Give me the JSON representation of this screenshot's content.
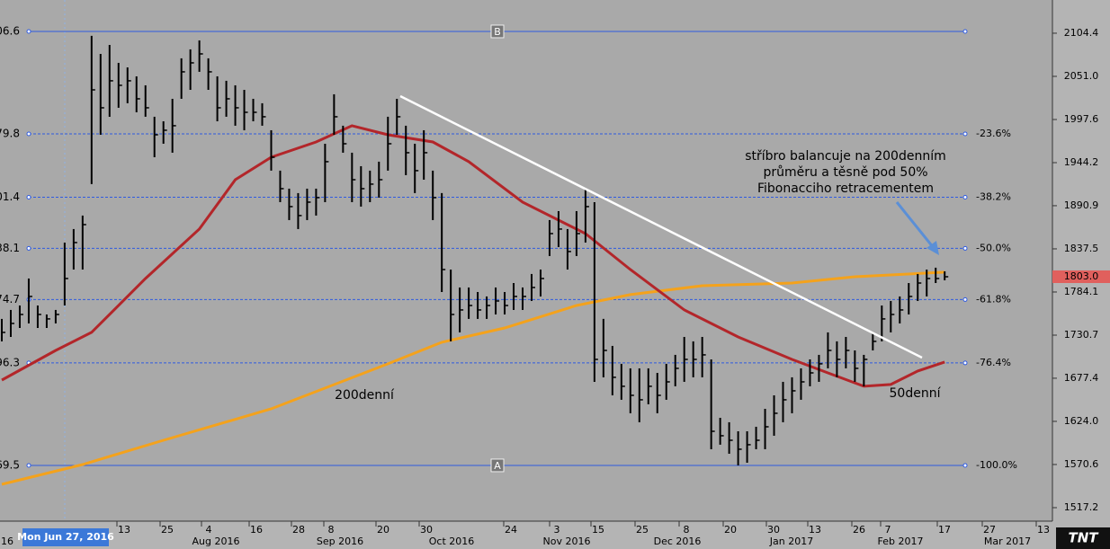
{
  "chart_data": {
    "type": "ohlc",
    "xlim": [
      -0.2,
      117
    ],
    "ylim": [
      1500.5,
      2145.5
    ],
    "yticks": [
      2104.4,
      {
        "value": 2051,
        "label": "2051.0"
      },
      1997.6,
      1944.2,
      1890.9,
      1837.5,
      1784.1,
      1730.7,
      1677.4,
      {
        "value": 1624,
        "label": "1624.0"
      },
      1570.6,
      1517.2
    ],
    "x_day_labels": [
      "13",
      "25",
      "4",
      "16",
      "28",
      "8",
      "20",
      "30",
      "24",
      "3",
      "15",
      "25",
      "8",
      "20",
      "30",
      "13",
      "26",
      "7",
      "17",
      "27",
      "13"
    ],
    "x_month_labels": [
      "16",
      "Aug 2016",
      "Sep 2016",
      "Oct 2016",
      "Nov 2016",
      "Dec 2016",
      "Jan 2017",
      "Feb 2017",
      "Mar 2017"
    ],
    "cursor_label": "Mon Jun 27, 2016",
    "color": "#000000",
    "high": [
      1750.8,
      1761.9,
      1767.4,
      1800.8,
      1767.4,
      1756.3,
      1761.9,
      1845.3,
      1862.0,
      1878.7,
      2101.1,
      2078.8,
      2089.9,
      2067.7,
      2062.1,
      2051.0,
      2039.9,
      2001.0,
      1995.4,
      2023.2,
      2073.3,
      2084.4,
      2095.5,
      2073.3,
      2051.0,
      2045.5,
      2039.9,
      2034.3,
      2023.2,
      2017.7,
      1984.3,
      1934.3,
      1912.0,
      1906.5,
      1912.0,
      1912.0,
      1967.6,
      2028.8,
      1989.9,
      1956.5,
      1939.8,
      1934.3,
      1945.4,
      2001.0,
      2023.2,
      1989.9,
      1967.6,
      1984.3,
      1934.3,
      1906.5,
      1811.9,
      1789.7,
      1789.7,
      1784.1,
      1778.6,
      1789.7,
      1784.1,
      1795.2,
      1789.7,
      1806.4,
      1811.9,
      1873.1,
      1884.2,
      1862.0,
      1884.2,
      1912.0,
      1895.3,
      1750.8,
      1717.4,
      1695.2,
      1689.6,
      1689.6,
      1689.6,
      1684.0,
      1695.2,
      1706.3,
      1728.5,
      1723.0,
      1728.5,
      1700.7,
      1628.4,
      1622.9,
      1611.7,
      1611.7,
      1617.3,
      1639.5,
      1656.2,
      1672.9,
      1678.5,
      1689.6,
      1700.7,
      1706.3,
      1734.1,
      1723.0,
      1728.5,
      1711.8,
      1706.3,
      1734.1,
      1767.4,
      1773.0,
      1778.6,
      1795.2,
      1806.4,
      1811.9,
      1814.2,
      1809.7
    ],
    "low": [
      1723.0,
      1728.5,
      1739.6,
      1745.2,
      1739.6,
      1739.6,
      1745.2,
      1767.4,
      1811.9,
      1811.9,
      1917.6,
      1978.7,
      2001.0,
      2012.1,
      2017.7,
      2006.5,
      2001.0,
      1950.9,
      1967.6,
      1956.5,
      2023.2,
      2034.3,
      2056.6,
      2034.3,
      1995.4,
      2001.0,
      1989.9,
      1984.3,
      1995.4,
      1989.9,
      1934.3,
      1895.3,
      1873.1,
      1862.0,
      1873.1,
      1878.7,
      1895.3,
      1978.7,
      1956.5,
      1895.3,
      1889.8,
      1895.3,
      1900.9,
      1934.3,
      1978.7,
      1928.7,
      1906.5,
      1923.1,
      1873.1,
      1784.1,
      1723.0,
      1734.1,
      1750.8,
      1750.8,
      1750.8,
      1756.3,
      1756.3,
      1761.9,
      1761.9,
      1773.0,
      1778.6,
      1828.6,
      1839.7,
      1811.9,
      1828.6,
      1845.3,
      1672.9,
      1678.5,
      1656.2,
      1650.7,
      1634.0,
      1622.9,
      1645.1,
      1634.0,
      1650.7,
      1667.4,
      1672.9,
      1678.5,
      1678.5,
      1589.5,
      1595.1,
      1583.9,
      1569.5,
      1572.8,
      1589.5,
      1589.5,
      1606.2,
      1622.9,
      1634.0,
      1650.7,
      1667.4,
      1672.9,
      1689.6,
      1678.5,
      1689.6,
      1672.9,
      1667.4,
      1711.8,
      1723.0,
      1734.1,
      1745.2,
      1756.3,
      1773.0,
      1778.6,
      1795.2,
      1798.6
    ],
    "close": [
      1734.1,
      1745.2,
      1756.3,
      1778.6,
      1756.3,
      1750.8,
      1756.3,
      1800.8,
      1845.3,
      1867.5,
      2034.3,
      2012.1,
      2045.5,
      2039.9,
      2045.5,
      2023.2,
      2012.1,
      1978.7,
      1984.3,
      1989.9,
      2056.6,
      2067.7,
      2078.8,
      2056.6,
      2012.1,
      2023.2,
      2012.1,
      2006.5,
      2006.5,
      2001.0,
      1950.9,
      1912.0,
      1889.8,
      1878.7,
      1895.3,
      1900.9,
      1945.4,
      2001.0,
      1967.6,
      1923.1,
      1912.0,
      1917.6,
      1923.1,
      1967.6,
      2001.0,
      1956.5,
      1934.3,
      1956.5,
      1900.9,
      1811.9,
      1756.3,
      1761.9,
      1767.4,
      1761.9,
      1767.4,
      1773.0,
      1767.4,
      1778.6,
      1778.6,
      1789.7,
      1800.8,
      1856.4,
      1862.0,
      1834.2,
      1856.4,
      1889.8,
      1700.7,
      1711.8,
      1678.5,
      1667.4,
      1656.2,
      1650.7,
      1667.4,
      1656.2,
      1672.9,
      1689.6,
      1700.7,
      1700.7,
      1706.3,
      1611.7,
      1606.2,
      1600.6,
      1589.5,
      1595.1,
      1600.6,
      1617.3,
      1634.0,
      1650.7,
      1661.8,
      1672.9,
      1684.0,
      1695.2,
      1711.8,
      1700.7,
      1711.8,
      1689.6,
      1700.7,
      1723.0,
      1750.8,
      1756.3,
      1761.9,
      1778.6,
      1795.2,
      1800.8,
      1800.8,
      1803.0
    ],
    "lines": [
      {
        "color": "#f4a21c",
        "x": [
          0,
          9,
          18,
          30,
          43,
          49,
          56,
          64,
          70,
          78,
          88,
          95,
          105
        ],
        "values": [
          1546.1,
          1570.6,
          1600.6,
          1639.5,
          1695.2,
          1721.9,
          1739.6,
          1767.4,
          1780.8,
          1791.9,
          1795.2,
          1803.0,
          1808.6
        ]
      },
      {
        "color": "#b3262a",
        "x": [
          0,
          6,
          10,
          16,
          22,
          26,
          30,
          35,
          39,
          43,
          48,
          52,
          58,
          65,
          70,
          76,
          82,
          88,
          92,
          96,
          99,
          102,
          105
        ],
        "values": [
          1675.1,
          1711.8,
          1734.1,
          1800.8,
          1862.0,
          1923.1,
          1950.9,
          1969.8,
          1989.9,
          1978.7,
          1969.8,
          1945.4,
          1895.3,
          1856.4,
          1811.9,
          1761.9,
          1728.5,
          1700.7,
          1684.0,
          1667.4,
          1669.6,
          1686.3,
          1697.4
        ]
      }
    ],
    "fib_levels": [
      {
        "value": 2106.6,
        "left_label": "06.6",
        "marker": "B"
      },
      {
        "value": 1979.8,
        "left_label": "79.8",
        "right_label": "-23.6%"
      },
      {
        "value": 1901.4,
        "left_label": "01.4",
        "right_label": "-38.2%"
      },
      {
        "value": 1838.1,
        "left_label": "38.1",
        "right_label": "-50.0%"
      },
      {
        "value": 1774.7,
        "left_label": "74.7",
        "right_label": "-61.8%"
      },
      {
        "value": 1696.3,
        "left_label": "96.3",
        "right_label": "-76.4%"
      },
      {
        "value": 1569.5,
        "left_label": "69.5",
        "right_label": "-100.0%",
        "marker": "A"
      }
    ],
    "last_price": {
      "value": 1803,
      "label": "1803.0"
    },
    "annotations": {
      "callout": [
        "stříbro balancuje na 200denním",
        "průměru a těsně pod 50%",
        "Fibonacciho retracementem"
      ],
      "ma200": "200denní",
      "ma50": "50denní"
    },
    "logo": "TNT"
  }
}
